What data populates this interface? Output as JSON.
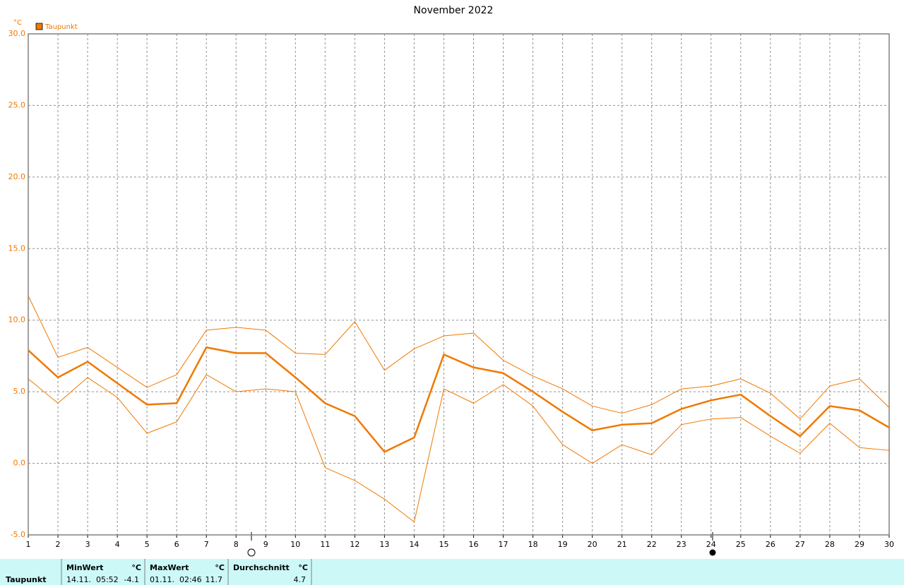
{
  "chart_data": {
    "type": "line",
    "title": "November 2022",
    "y_unit": "°C",
    "x": [
      1,
      2,
      3,
      4,
      5,
      6,
      7,
      8,
      9,
      10,
      11,
      12,
      13,
      14,
      15,
      16,
      17,
      18,
      19,
      20,
      21,
      22,
      23,
      24,
      25,
      26,
      27,
      28,
      29,
      30
    ],
    "xlim": [
      1,
      30
    ],
    "xticks": [
      1,
      2,
      3,
      4,
      5,
      6,
      7,
      8,
      9,
      10,
      11,
      12,
      13,
      14,
      15,
      16,
      17,
      18,
      19,
      20,
      21,
      22,
      23,
      24,
      25,
      26,
      27,
      28,
      29,
      30
    ],
    "ylim": [
      -5,
      30
    ],
    "yticks": [
      {
        "value": -5,
        "label": "-5.0"
      },
      {
        "value": 0,
        "label": "0.0"
      },
      {
        "value": 5,
        "label": "5.0"
      },
      {
        "value": 10,
        "label": "10.0"
      },
      {
        "value": 15,
        "label": "15.0"
      },
      {
        "value": 20,
        "label": "20.0"
      },
      {
        "value": 25,
        "label": "25.0"
      },
      {
        "value": 30,
        "label": "30.0"
      }
    ],
    "grid": true,
    "legend": "top-left",
    "series": [
      {
        "name": "Taupunkt",
        "color": "#f07800",
        "values": [
          7.9,
          6.0,
          7.1,
          5.6,
          4.1,
          4.2,
          8.1,
          7.7,
          7.7,
          6.0,
          4.2,
          3.3,
          0.8,
          1.8,
          7.6,
          6.7,
          6.3,
          5.0,
          3.6,
          2.3,
          2.7,
          2.8,
          3.8,
          4.4,
          4.8,
          3.3,
          1.9,
          4.0,
          3.7,
          2.5
        ],
        "upper": [
          11.7,
          7.4,
          8.1,
          6.7,
          5.3,
          6.2,
          9.3,
          9.5,
          9.3,
          7.7,
          7.6,
          9.9,
          6.5,
          8.0,
          8.9,
          9.1,
          7.2,
          6.1,
          5.2,
          4.0,
          3.5,
          4.1,
          5.2,
          5.4,
          5.9,
          4.9,
          3.1,
          5.4,
          5.9,
          3.9
        ],
        "lower": [
          5.9,
          4.2,
          6.0,
          4.6,
          2.1,
          2.9,
          6.2,
          5.0,
          5.2,
          5.0,
          -0.3,
          -1.2,
          -2.5,
          -4.1,
          5.2,
          4.2,
          5.5,
          4.0,
          1.3,
          0.0,
          1.3,
          0.6,
          2.7,
          3.1,
          3.2,
          1.9,
          0.7,
          2.8,
          1.1,
          0.9
        ]
      }
    ]
  },
  "stats_table": {
    "row_label": "Taupunkt",
    "columns": [
      {
        "header": "MinWert",
        "unit": "°C",
        "time": "14.11.  05:52",
        "value": -4.1
      },
      {
        "header": "MaxWert",
        "unit": "°C",
        "time": "01.11.  02:46",
        "value": 11.7
      },
      {
        "header": "Durchschnitt",
        "unit": "°C",
        "value": 4.7
      }
    ]
  }
}
